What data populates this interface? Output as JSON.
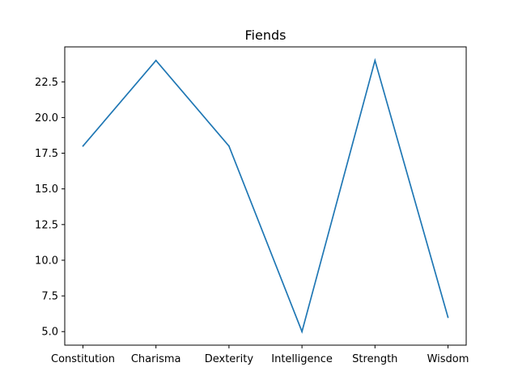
{
  "chart_data": {
    "type": "line",
    "title": "Fiends",
    "xlabel": "",
    "ylabel": "",
    "categories": [
      "Constitution",
      "Charisma",
      "Dexterity",
      "Intelligence",
      "Strength",
      "Wisdom"
    ],
    "series": [
      {
        "values": [
          18,
          24,
          18,
          5,
          24,
          6
        ],
        "color": "#1f77b4"
      }
    ],
    "yticks": [
      5.0,
      7.5,
      10.0,
      12.5,
      15.0,
      17.5,
      20.0,
      22.5
    ],
    "ytick_labels": [
      "5.0",
      "7.5",
      "10.0",
      "12.5",
      "15.0",
      "17.5",
      "20.0",
      "22.5"
    ],
    "ylim": [
      4.05,
      24.95
    ],
    "grid": false,
    "legend": "none"
  }
}
